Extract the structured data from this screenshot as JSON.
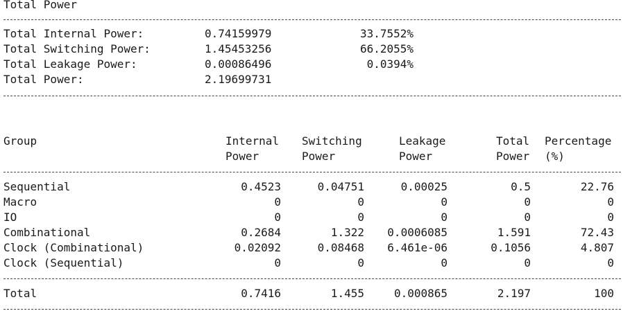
{
  "summary": {
    "title": "Total Power",
    "rows": [
      {
        "label": "Total Internal Power:",
        "value": "0.74159979",
        "pct": "33.7552%"
      },
      {
        "label": "Total Switching Power:",
        "value": "1.45453256",
        "pct": "66.2055%"
      },
      {
        "label": "Total Leakage Power:",
        "value": "0.00086496",
        "pct": "0.0394%"
      },
      {
        "label": "Total Power:",
        "value": "2.19699731",
        "pct": ""
      }
    ]
  },
  "table": {
    "headers": {
      "group": "Group",
      "internal_1": "Internal",
      "internal_2": "Power",
      "switching_1": "Switching",
      "switching_2": "Power",
      "leakage_1": "Leakage",
      "leakage_2": "Power",
      "total_1": "Total",
      "total_2": "Power",
      "percentage_1": "Percentage",
      "percentage_2": "(%)"
    },
    "rows": [
      {
        "group": "Sequential",
        "internal": "0.4523",
        "switching": "0.04751",
        "leakage": "0.00025",
        "total": "0.5",
        "percentage": "22.76"
      },
      {
        "group": "Macro",
        "internal": "0",
        "switching": "0",
        "leakage": "0",
        "total": "0",
        "percentage": "0"
      },
      {
        "group": "IO",
        "internal": "0",
        "switching": "0",
        "leakage": "0",
        "total": "0",
        "percentage": "0"
      },
      {
        "group": "Combinational",
        "internal": "0.2684",
        "switching": "1.322",
        "leakage": "0.0006085",
        "total": "1.591",
        "percentage": "72.43"
      },
      {
        "group": "Clock (Combinational)",
        "internal": "0.02092",
        "switching": "0.08468",
        "leakage": "6.461e-06",
        "total": "0.1056",
        "percentage": "4.807"
      },
      {
        "group": "Clock (Sequential)",
        "internal": "0",
        "switching": "0",
        "leakage": "0",
        "total": "0",
        "percentage": "0"
      }
    ],
    "total_row": {
      "group": "Total",
      "internal": "0.7416",
      "switching": "1.455",
      "leakage": "0.000865",
      "total": "2.197",
      "percentage": "100"
    }
  }
}
